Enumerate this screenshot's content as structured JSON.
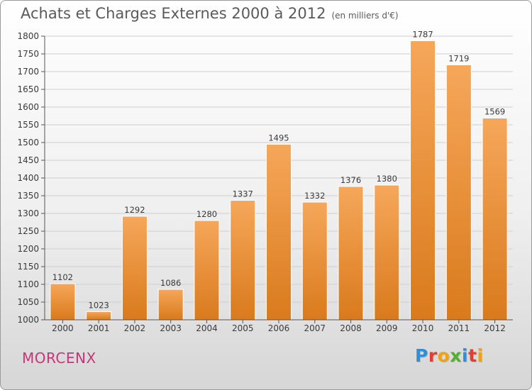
{
  "title": "Achats et Charges Externes 2000 à 2012",
  "unit": "(en milliers d'€)",
  "commune": "MORCENX",
  "logo": {
    "text": "Proxiti",
    "letters": [
      {
        "ch": "P",
        "color": "#2e8fd8"
      },
      {
        "ch": "r",
        "color": "#e63b2e"
      },
      {
        "ch": "o",
        "color": "#f2a20f"
      },
      {
        "ch": "x",
        "color": "#4db32e"
      },
      {
        "ch": "i",
        "color": "#2e8fd8"
      },
      {
        "ch": "t",
        "color": "#e63b2e"
      },
      {
        "ch": "i",
        "color": "#f2a20f"
      }
    ]
  },
  "colors": {
    "bar_top": "#f6a75a",
    "bar_bottom": "#d97a1c",
    "grid": "#cfcfcf",
    "text": "#3a3a3a"
  },
  "chart_data": {
    "type": "bar",
    "title": "Achats et Charges Externes 2000 à 2012",
    "xlabel": "",
    "ylabel": "",
    "categories": [
      "2000",
      "2001",
      "2002",
      "2003",
      "2004",
      "2005",
      "2006",
      "2007",
      "2008",
      "2009",
      "2010",
      "2011",
      "2012"
    ],
    "values": [
      1102,
      1023,
      1292,
      1086,
      1280,
      1337,
      1495,
      1332,
      1376,
      1380,
      1787,
      1719,
      1569
    ],
    "ylim": [
      1000,
      1800
    ],
    "yticks": [
      1000,
      1050,
      1100,
      1150,
      1200,
      1250,
      1300,
      1350,
      1400,
      1450,
      1500,
      1550,
      1600,
      1650,
      1700,
      1750,
      1800
    ],
    "grid": true,
    "data_labels": true
  }
}
